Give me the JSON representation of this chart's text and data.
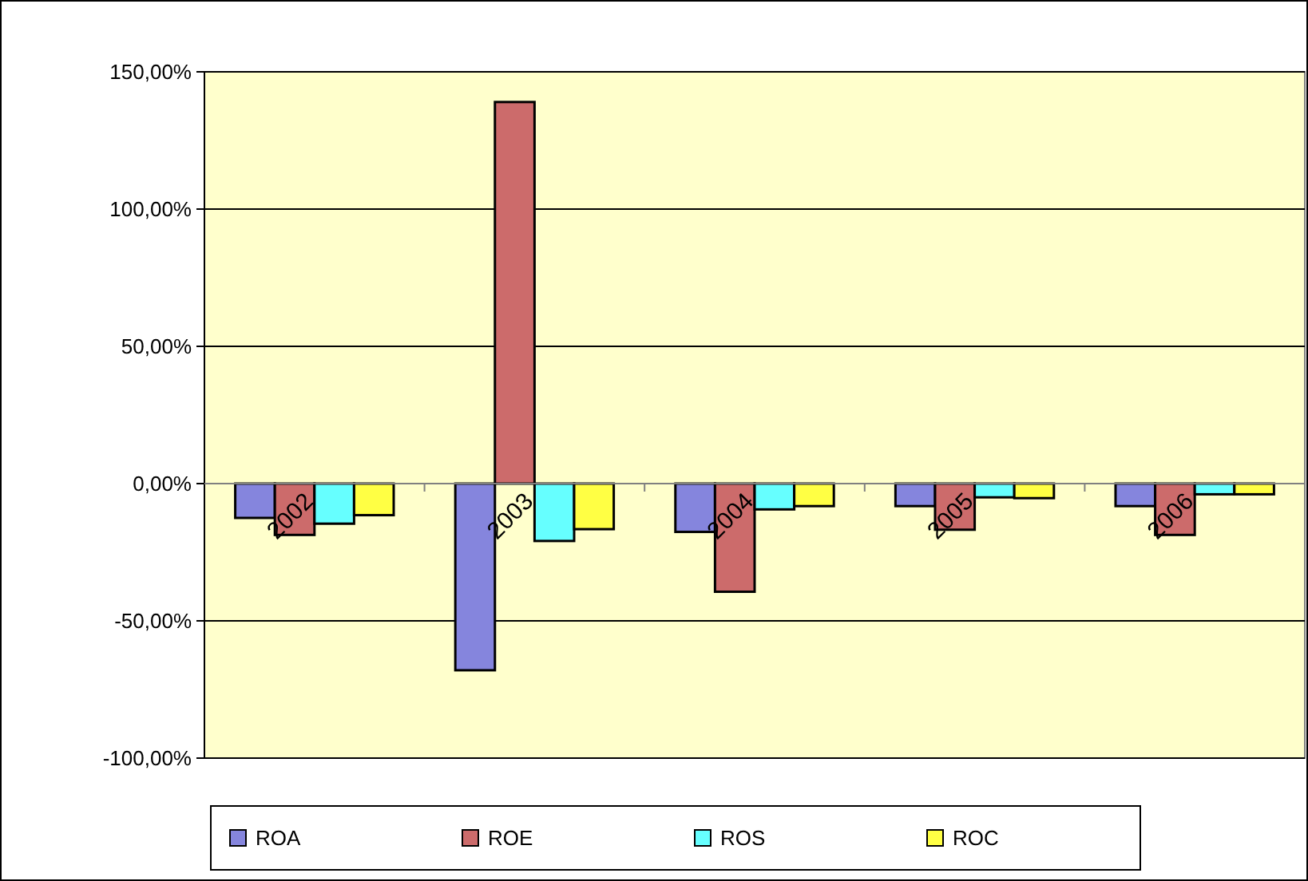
{
  "chart_data": {
    "type": "bar",
    "categories": [
      "2002",
      "2003",
      "2004",
      "2005",
      "2006"
    ],
    "series": [
      {
        "name": "ROA",
        "color": "#8585dd",
        "values": [
          -12.5,
          -68,
          -17.6,
          -8.2,
          -8.2
        ]
      },
      {
        "name": "ROE",
        "color": "#cc6b6b",
        "values": [
          -18.7,
          139,
          -39.4,
          -16.8,
          -18.7
        ]
      },
      {
        "name": "ROS",
        "color": "#66ffff",
        "values": [
          -14.6,
          -20.9,
          -9.4,
          -5,
          -3.9
        ]
      },
      {
        "name": "ROC",
        "color": "#ffff44",
        "values": [
          -11.5,
          -16.6,
          -8.2,
          -5.3,
          -3.9
        ]
      }
    ],
    "ylim": [
      -100,
      150
    ],
    "yticks": [
      {
        "value": -100,
        "label": "-100,00%"
      },
      {
        "value": -50,
        "label": "-50,00%"
      },
      {
        "value": 0,
        "label": "0,00%"
      },
      {
        "value": 50,
        "label": "50,00%"
      },
      {
        "value": 100,
        "label": "100,00%"
      },
      {
        "value": 150,
        "label": "150,00%"
      }
    ],
    "grid": "y",
    "legend": "bottom"
  }
}
